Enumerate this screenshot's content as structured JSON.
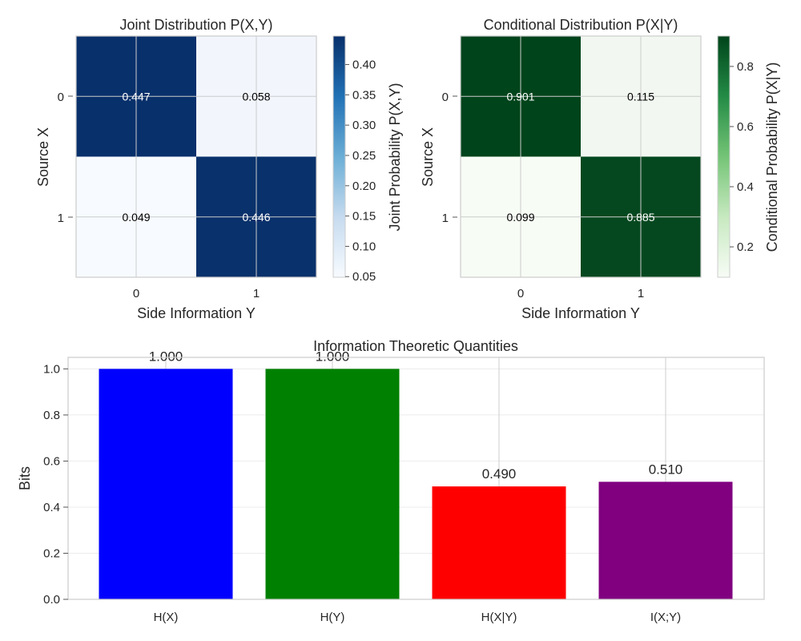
{
  "chart_data": [
    {
      "type": "heatmap",
      "title": "Joint Distribution P(X,Y)",
      "xlabel": "Side Information Y",
      "ylabel": "Source X",
      "x_categories": [
        "0",
        "1"
      ],
      "y_categories": [
        "0",
        "1"
      ],
      "values": [
        [
          0.447,
          0.058
        ],
        [
          0.049,
          0.446
        ]
      ],
      "value_labels": [
        [
          "0.447",
          "0.058"
        ],
        [
          "0.049",
          "0.446"
        ]
      ],
      "colorbar": {
        "label": "Joint Probability P(X,Y)",
        "min": 0.049,
        "max": 0.447,
        "ticks": [
          "0.05",
          "0.10",
          "0.15",
          "0.20",
          "0.25",
          "0.30",
          "0.35",
          "0.40"
        ],
        "colormap": "Blues",
        "low_color": "#f7fbff",
        "high_color": "#08306b"
      }
    },
    {
      "type": "heatmap",
      "title": "Conditional Distribution P(X|Y)",
      "xlabel": "Side Information Y",
      "ylabel": "Source X",
      "x_categories": [
        "0",
        "1"
      ],
      "y_categories": [
        "0",
        "1"
      ],
      "values": [
        [
          0.901,
          0.115
        ],
        [
          0.099,
          0.885
        ]
      ],
      "value_labels": [
        [
          "0.901",
          "0.115"
        ],
        [
          "0.099",
          "0.885"
        ]
      ],
      "colorbar": {
        "label": "Conditional Probability P(X|Y)",
        "min": 0.099,
        "max": 0.901,
        "ticks": [
          "0.2",
          "0.4",
          "0.6",
          "0.8"
        ],
        "colormap": "Greens",
        "low_color": "#f7fcf5",
        "high_color": "#00441b"
      }
    },
    {
      "type": "bar",
      "title": "Information Theoretic Quantities",
      "xlabel": "",
      "ylabel": "Bits",
      "categories": [
        "H(X)",
        "H(Y)",
        "H(X|Y)",
        "I(X;Y)"
      ],
      "values": [
        1.0,
        1.0,
        0.49,
        0.51
      ],
      "value_labels": [
        "1.000",
        "1.000",
        "0.490",
        "0.510"
      ],
      "colors": [
        "#0000ff",
        "#008000",
        "#ff0000",
        "#800080"
      ],
      "ylim": [
        0,
        1.05
      ],
      "yticks": [
        "0.0",
        "0.2",
        "0.4",
        "0.6",
        "0.8",
        "1.0"
      ],
      "grid": true
    }
  ]
}
